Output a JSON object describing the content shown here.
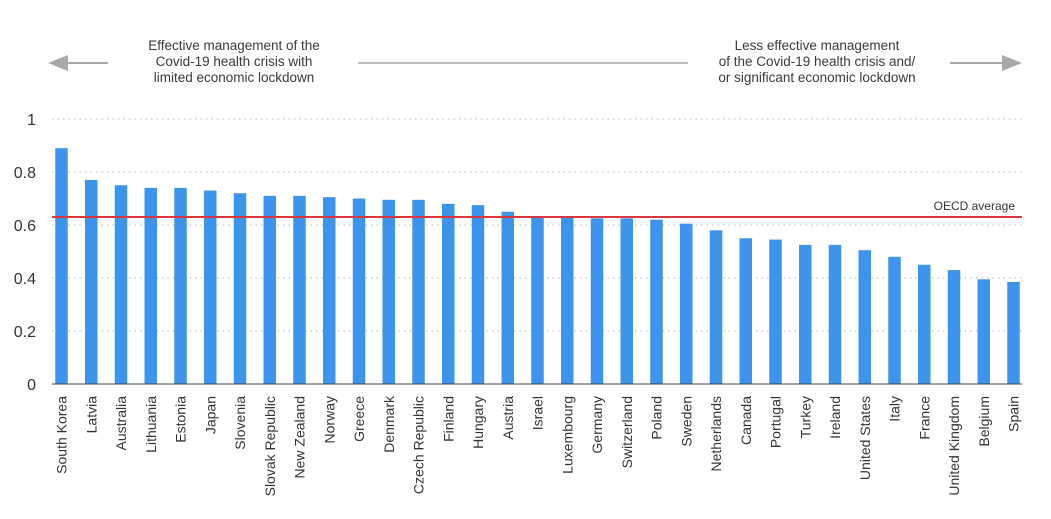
{
  "annotations": {
    "left": [
      "Effective management of the",
      "Covid-19 health crisis with",
      "limited economic lockdown"
    ],
    "right": [
      "Less effective management",
      "of the Covid-19 health crisis and/",
      "or significant economic lockdown"
    ]
  },
  "colors": {
    "bar": "#3d94ec",
    "reference_line": "#d9363e",
    "arrow": "#a8a8a8",
    "grid": "#b5b5b5",
    "axis": "#444444"
  },
  "chart_data": {
    "type": "bar",
    "title": "",
    "xlabel": "",
    "ylabel": "",
    "ylim": [
      0,
      1
    ],
    "yticks": [
      0,
      0.2,
      0.4,
      0.6,
      0.8,
      1
    ],
    "ytick_labels": [
      "0",
      "0.2",
      "0.4",
      "0.6",
      "0.8",
      "1"
    ],
    "grid": "horizontal dotted",
    "categories": [
      "South Korea",
      "Latvia",
      "Australia",
      "Lithuania",
      "Estonia",
      "Japan",
      "Slovenia",
      "Slovak Republic",
      "New Zealand",
      "Norway",
      "Greece",
      "Denmark",
      "Czech Republic",
      "Finland",
      "Hungary",
      "Austria",
      "Israel",
      "Luxembourg",
      "Germany",
      "Switzerland",
      "Poland",
      "Sweden",
      "Netherlands",
      "Canada",
      "Portugal",
      "Turkey",
      "Ireland",
      "United States",
      "Italy",
      "France",
      "United Kingdom",
      "Belgium",
      "Spain"
    ],
    "values": [
      0.89,
      0.77,
      0.75,
      0.74,
      0.74,
      0.73,
      0.72,
      0.71,
      0.71,
      0.705,
      0.7,
      0.695,
      0.695,
      0.68,
      0.675,
      0.65,
      0.63,
      0.63,
      0.625,
      0.625,
      0.62,
      0.605,
      0.58,
      0.55,
      0.545,
      0.525,
      0.525,
      0.505,
      0.48,
      0.45,
      0.43,
      0.395,
      0.385
    ],
    "reference_line": {
      "label": "OECD average",
      "value": 0.63
    }
  }
}
